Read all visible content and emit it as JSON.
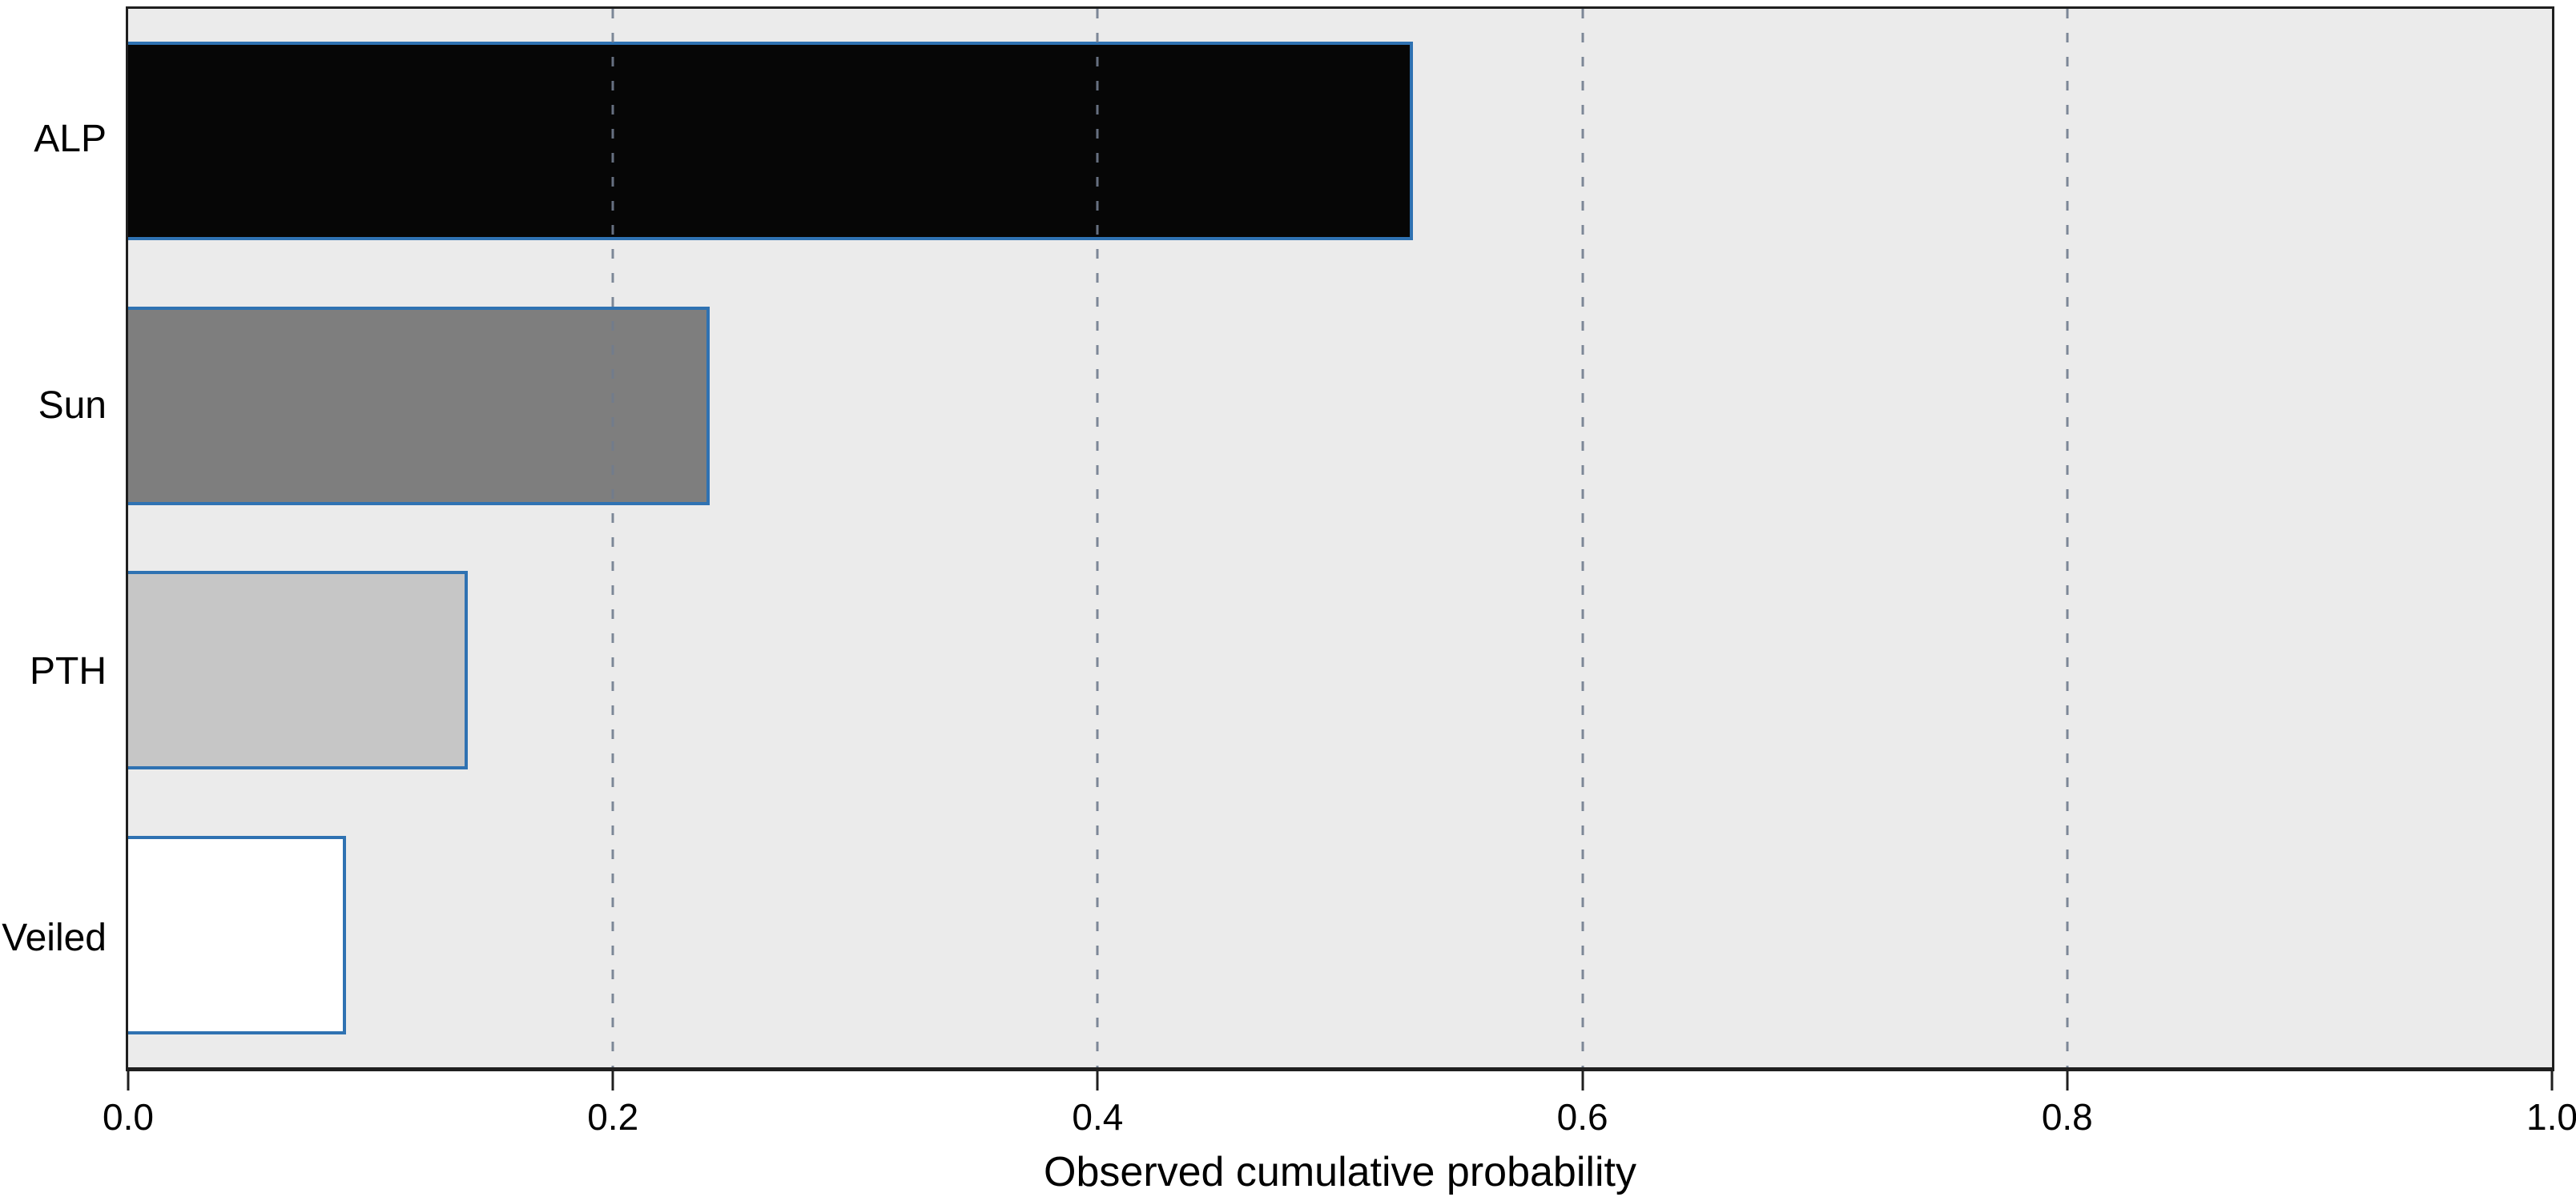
{
  "chart_data": {
    "type": "bar",
    "orientation": "horizontal",
    "xlabel": "Observed cumulative probability",
    "categories": [
      "ALP",
      "Sun",
      "PTH",
      "Veiled"
    ],
    "values": [
      0.53,
      0.24,
      0.14,
      0.09
    ],
    "xlim": [
      0,
      1
    ],
    "x_tick_labels": [
      "0.0",
      "0.2",
      "0.4",
      "0.6",
      "0.8",
      "1.0"
    ],
    "x_tick_values": [
      0,
      0.2,
      0.4,
      0.6,
      0.8,
      1.0
    ],
    "gridline_values": [
      0.2,
      0.4,
      0.6,
      0.8
    ],
    "grid_style": "dashed-vertical",
    "legend": "none",
    "colors": {
      "page_background": "#ffffff",
      "plot_background": "#ebebeb",
      "bar_fills": [
        "#060606",
        "#7e7e7e",
        "#c6c6c6",
        "#ffffff"
      ],
      "bar_edge": "#2f72b2",
      "gridline": "rgba(112,124,142,0.9)",
      "axis": "#1f1f1f",
      "text": "#000000"
    }
  }
}
